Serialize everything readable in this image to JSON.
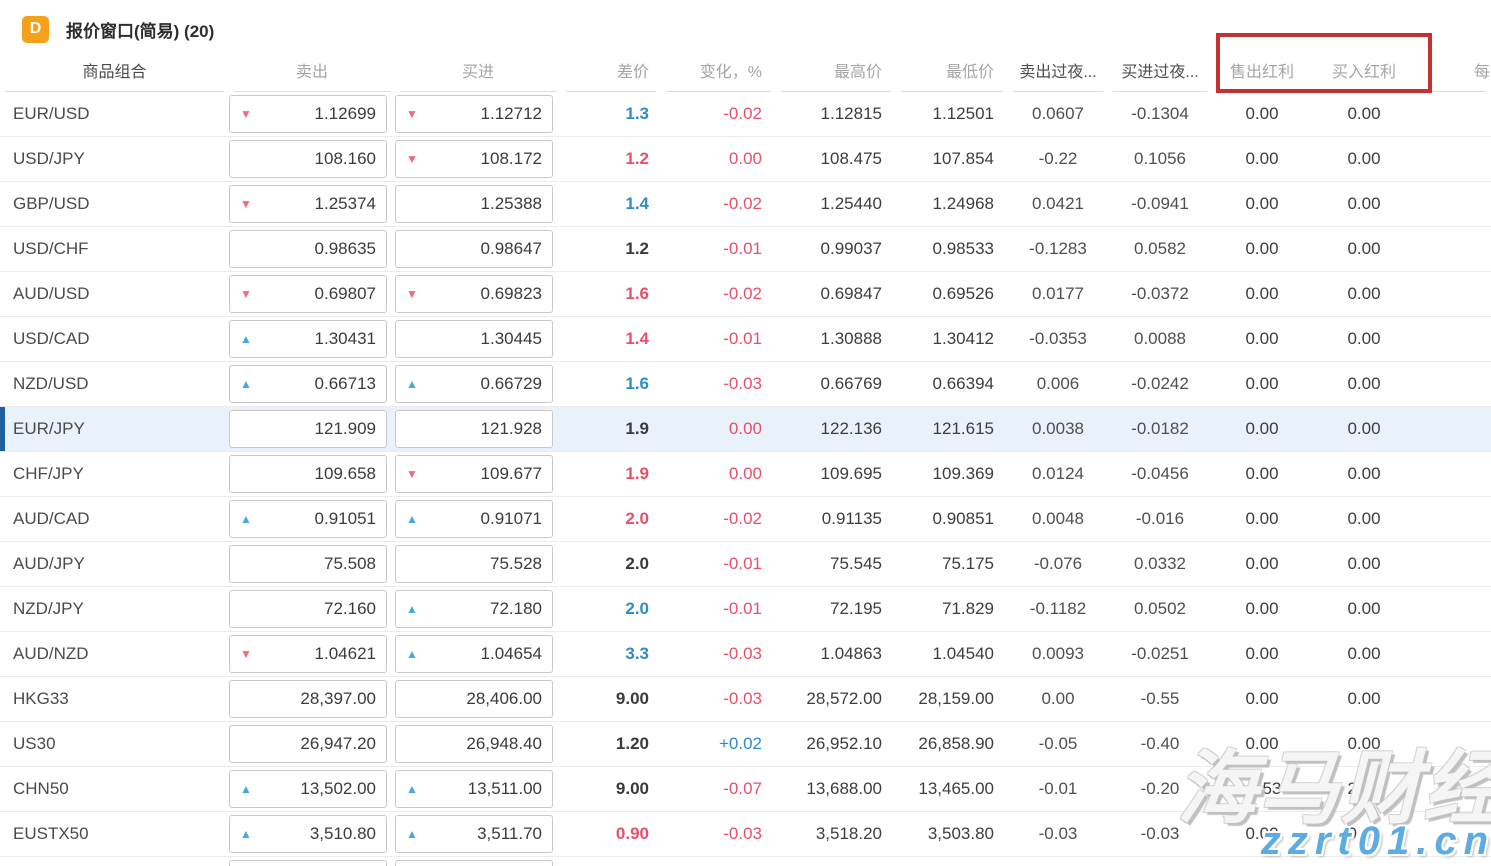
{
  "window": {
    "icon_letter": "D",
    "icon_color": "#f5a019",
    "title": "报价窗口(简易) (20)"
  },
  "annotation": {
    "shape": "red-rectangle",
    "color": "#c53030",
    "around": [
      "售出红利",
      "买入红利"
    ]
  },
  "watermark": {
    "line1": "海马财经",
    "line2": "zzrt01.cn",
    "url_color": "#5cabe2"
  },
  "colors": {
    "up_arrow": "#45a7e8",
    "down_arrow": "#f2697c",
    "positive": "#2e8bc7",
    "negative": "#e8506a",
    "highlight_row_bg": "#e9f1fa",
    "highlight_row_bar": "#1f5fa0"
  },
  "table": {
    "columns": [
      {
        "id": "symbol",
        "label": "商品组合"
      },
      {
        "id": "sell",
        "label": "卖出"
      },
      {
        "id": "buy",
        "label": "买进"
      },
      {
        "id": "spread",
        "label": "差价"
      },
      {
        "id": "change",
        "label": "变化，%"
      },
      {
        "id": "high",
        "label": "最高价"
      },
      {
        "id": "low",
        "label": "最低价"
      },
      {
        "id": "sell_overnight",
        "label": "卖出过夜..."
      },
      {
        "id": "buy_overnight",
        "label": "买进过夜..."
      },
      {
        "id": "sell_dividend",
        "label": "售出红利"
      },
      {
        "id": "buy_dividend",
        "label": "买入红利"
      },
      {
        "id": "extra",
        "label": "每"
      }
    ],
    "rows": [
      {
        "symbol": "EUR/USD",
        "sell": {
          "arrow": "down",
          "value": "1.12699"
        },
        "buy": {
          "arrow": "down",
          "value": "1.12712"
        },
        "spread": {
          "value": "1.3",
          "color": "blue"
        },
        "change": {
          "value": "-0.02",
          "color": "red"
        },
        "high": "1.12815",
        "low": "1.12501",
        "sell_overnight": "0.0607",
        "buy_overnight": "-0.1304",
        "sell_dividend": "0.00",
        "buy_dividend": "0.00",
        "highlighted": false
      },
      {
        "symbol": "USD/JPY",
        "sell": {
          "arrow": "none",
          "value": "108.160"
        },
        "buy": {
          "arrow": "down",
          "value": "108.172"
        },
        "spread": {
          "value": "1.2",
          "color": "red"
        },
        "change": {
          "value": "0.00",
          "color": "red"
        },
        "high": "108.475",
        "low": "107.854",
        "sell_overnight": "-0.22",
        "buy_overnight": "0.1056",
        "sell_dividend": "0.00",
        "buy_dividend": "0.00",
        "highlighted": false
      },
      {
        "symbol": "GBP/USD",
        "sell": {
          "arrow": "down",
          "value": "1.25374"
        },
        "buy": {
          "arrow": "none",
          "value": "1.25388"
        },
        "spread": {
          "value": "1.4",
          "color": "blue"
        },
        "change": {
          "value": "-0.02",
          "color": "red"
        },
        "high": "1.25440",
        "low": "1.24968",
        "sell_overnight": "0.0421",
        "buy_overnight": "-0.0941",
        "sell_dividend": "0.00",
        "buy_dividend": "0.00",
        "highlighted": false
      },
      {
        "symbol": "USD/CHF",
        "sell": {
          "arrow": "none",
          "value": "0.98635"
        },
        "buy": {
          "arrow": "none",
          "value": "0.98647"
        },
        "spread": {
          "value": "1.2",
          "color": "dark"
        },
        "change": {
          "value": "-0.01",
          "color": "red"
        },
        "high": "0.99037",
        "low": "0.98533",
        "sell_overnight": "-0.1283",
        "buy_overnight": "0.0582",
        "sell_dividend": "0.00",
        "buy_dividend": "0.00",
        "highlighted": false
      },
      {
        "symbol": "AUD/USD",
        "sell": {
          "arrow": "down",
          "value": "0.69807"
        },
        "buy": {
          "arrow": "down",
          "value": "0.69823"
        },
        "spread": {
          "value": "1.6",
          "color": "red"
        },
        "change": {
          "value": "-0.02",
          "color": "red"
        },
        "high": "0.69847",
        "low": "0.69526",
        "sell_overnight": "0.0177",
        "buy_overnight": "-0.0372",
        "sell_dividend": "0.00",
        "buy_dividend": "0.00",
        "highlighted": false
      },
      {
        "symbol": "USD/CAD",
        "sell": {
          "arrow": "up",
          "value": "1.30431"
        },
        "buy": {
          "arrow": "none",
          "value": "1.30445"
        },
        "spread": {
          "value": "1.4",
          "color": "red"
        },
        "change": {
          "value": "-0.01",
          "color": "red"
        },
        "high": "1.30888",
        "low": "1.30412",
        "sell_overnight": "-0.0353",
        "buy_overnight": "0.0088",
        "sell_dividend": "0.00",
        "buy_dividend": "0.00",
        "highlighted": false
      },
      {
        "symbol": "NZD/USD",
        "sell": {
          "arrow": "up",
          "value": "0.66713"
        },
        "buy": {
          "arrow": "up",
          "value": "0.66729"
        },
        "spread": {
          "value": "1.6",
          "color": "blue"
        },
        "change": {
          "value": "-0.03",
          "color": "red"
        },
        "high": "0.66769",
        "low": "0.66394",
        "sell_overnight": "0.006",
        "buy_overnight": "-0.0242",
        "sell_dividend": "0.00",
        "buy_dividend": "0.00",
        "highlighted": false
      },
      {
        "symbol": "EUR/JPY",
        "sell": {
          "arrow": "none",
          "value": "121.909"
        },
        "buy": {
          "arrow": "none",
          "value": "121.928"
        },
        "spread": {
          "value": "1.9",
          "color": "dark"
        },
        "change": {
          "value": "0.00",
          "color": "red"
        },
        "high": "122.136",
        "low": "121.615",
        "sell_overnight": "0.0038",
        "buy_overnight": "-0.0182",
        "sell_dividend": "0.00",
        "buy_dividend": "0.00",
        "highlighted": true
      },
      {
        "symbol": "CHF/JPY",
        "sell": {
          "arrow": "none",
          "value": "109.658"
        },
        "buy": {
          "arrow": "down",
          "value": "109.677"
        },
        "spread": {
          "value": "1.9",
          "color": "red"
        },
        "change": {
          "value": "0.00",
          "color": "red"
        },
        "high": "109.695",
        "low": "109.369",
        "sell_overnight": "0.0124",
        "buy_overnight": "-0.0456",
        "sell_dividend": "0.00",
        "buy_dividend": "0.00",
        "highlighted": false
      },
      {
        "symbol": "AUD/CAD",
        "sell": {
          "arrow": "up",
          "value": "0.91051"
        },
        "buy": {
          "arrow": "up",
          "value": "0.91071"
        },
        "spread": {
          "value": "2.0",
          "color": "red"
        },
        "change": {
          "value": "-0.02",
          "color": "red"
        },
        "high": "0.91135",
        "low": "0.90851",
        "sell_overnight": "0.0048",
        "buy_overnight": "-0.016",
        "sell_dividend": "0.00",
        "buy_dividend": "0.00",
        "highlighted": false
      },
      {
        "symbol": "AUD/JPY",
        "sell": {
          "arrow": "none",
          "value": "75.508"
        },
        "buy": {
          "arrow": "none",
          "value": "75.528"
        },
        "spread": {
          "value": "2.0",
          "color": "dark"
        },
        "change": {
          "value": "-0.01",
          "color": "red"
        },
        "high": "75.545",
        "low": "75.175",
        "sell_overnight": "-0.076",
        "buy_overnight": "0.0332",
        "sell_dividend": "0.00",
        "buy_dividend": "0.00",
        "highlighted": false
      },
      {
        "symbol": "NZD/JPY",
        "sell": {
          "arrow": "none",
          "value": "72.160"
        },
        "buy": {
          "arrow": "up",
          "value": "72.180"
        },
        "spread": {
          "value": "2.0",
          "color": "blue"
        },
        "change": {
          "value": "-0.01",
          "color": "red"
        },
        "high": "72.195",
        "low": "71.829",
        "sell_overnight": "-0.1182",
        "buy_overnight": "0.0502",
        "sell_dividend": "0.00",
        "buy_dividend": "0.00",
        "highlighted": false
      },
      {
        "symbol": "AUD/NZD",
        "sell": {
          "arrow": "down",
          "value": "1.04621"
        },
        "buy": {
          "arrow": "up",
          "value": "1.04654"
        },
        "spread": {
          "value": "3.3",
          "color": "blue"
        },
        "change": {
          "value": "-0.03",
          "color": "red"
        },
        "high": "1.04863",
        "low": "1.04540",
        "sell_overnight": "0.0093",
        "buy_overnight": "-0.0251",
        "sell_dividend": "0.00",
        "buy_dividend": "0.00",
        "highlighted": false
      },
      {
        "symbol": "HKG33",
        "sell": {
          "arrow": "none",
          "value": "28,397.00"
        },
        "buy": {
          "arrow": "none",
          "value": "28,406.00"
        },
        "spread": {
          "value": "9.00",
          "color": "dark"
        },
        "change": {
          "value": "-0.03",
          "color": "red"
        },
        "high": "28,572.00",
        "low": "28,159.00",
        "sell_overnight": "0.00",
        "buy_overnight": "-0.55",
        "sell_dividend": "0.00",
        "buy_dividend": "0.00",
        "highlighted": false
      },
      {
        "symbol": "US30",
        "sell": {
          "arrow": "none",
          "value": "26,947.20"
        },
        "buy": {
          "arrow": "none",
          "value": "26,948.40"
        },
        "spread": {
          "value": "1.20",
          "color": "dark"
        },
        "change": {
          "value": "+0.02",
          "color": "blue"
        },
        "high": "26,952.10",
        "low": "26,858.90",
        "sell_overnight": "-0.05",
        "buy_overnight": "-0.40",
        "sell_dividend": "0.00",
        "buy_dividend": "0.00",
        "highlighted": false
      },
      {
        "symbol": "CHN50",
        "sell": {
          "arrow": "up",
          "value": "13,502.00"
        },
        "buy": {
          "arrow": "up",
          "value": "13,511.00"
        },
        "spread": {
          "value": "9.00",
          "color": "dark"
        },
        "change": {
          "value": "-0.07",
          "color": "red"
        },
        "high": "13,688.00",
        "low": "13,465.00",
        "sell_overnight": "-0.01",
        "buy_overnight": "-0.20",
        "sell_dividend": "-3.53",
        "buy_dividend": "2.64",
        "highlighted": false
      },
      {
        "symbol": "EUSTX50",
        "sell": {
          "arrow": "up",
          "value": "3,510.80"
        },
        "buy": {
          "arrow": "up",
          "value": "3,511.70"
        },
        "spread": {
          "value": "0.90",
          "color": "red"
        },
        "change": {
          "value": "-0.03",
          "color": "red"
        },
        "high": "3,518.20",
        "low": "3,503.80",
        "sell_overnight": "-0.03",
        "buy_overnight": "-0.03",
        "sell_dividend": "0.00",
        "buy_dividend": "0.00",
        "highlighted": false
      },
      {
        "symbol": "",
        "sell": {
          "arrow": "none",
          "value": ""
        },
        "buy": {
          "arrow": "none",
          "value": ""
        },
        "spread": {
          "value": "",
          "color": "dark"
        },
        "change": {
          "value": "",
          "color": "red"
        },
        "high": "",
        "low": "",
        "sell_overnight": "",
        "buy_overnight": "",
        "sell_dividend": "",
        "buy_dividend": "",
        "highlighted": false
      }
    ]
  }
}
